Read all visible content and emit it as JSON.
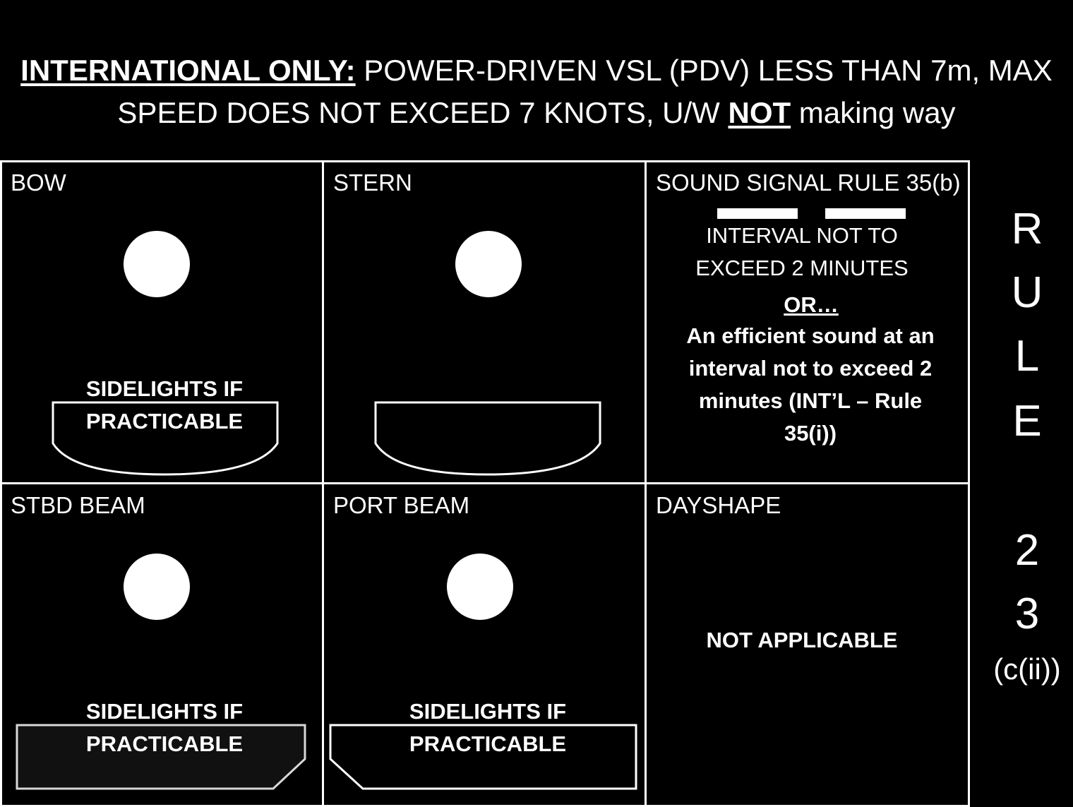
{
  "title": {
    "prefix": "INTERNATIONAL ONLY:",
    "line1_rest": " POWER-DRIVEN VSL (PDV) LESS THAN 7m, MAX",
    "line2_start": "SPEED DOES NOT EXCEED 7 KNOTS, U/W ",
    "not_word": "NOT",
    "line2_end": " making way"
  },
  "cells": {
    "bow": {
      "label": "BOW",
      "sidelights_line1": "SIDELIGHTS IF",
      "sidelights_line2": "PRACTICABLE"
    },
    "stern": {
      "label": "STERN"
    },
    "sound": {
      "label": "SOUND SIGNAL RULE 35(b)",
      "interval_line1": "INTERVAL NOT TO",
      "interval_line2": "EXCEED 2 MINUTES",
      "or": "OR…",
      "alt_line1": "An efficient sound at an",
      "alt_line2": "interval not to exceed 2",
      "alt_line3": "minutes (INT’L – Rule",
      "alt_line4": "35(i))"
    },
    "stbd_beam": {
      "label": "STBD BEAM",
      "sidelights_line1": "SIDELIGHTS IF",
      "sidelights_line2": "PRACTICABLE"
    },
    "port_beam": {
      "label": "PORT BEAM",
      "sidelights_line1": "SIDELIGHTS IF",
      "sidelights_line2": "PRACTICABLE"
    },
    "dayshape": {
      "label": "DAYSHAPE",
      "text": "NOT APPLICABLE"
    }
  },
  "rule_side": {
    "letters": [
      "R",
      "U",
      "L",
      "E"
    ],
    "digits": [
      "2",
      "3"
    ],
    "sub": "(c(ii))"
  }
}
